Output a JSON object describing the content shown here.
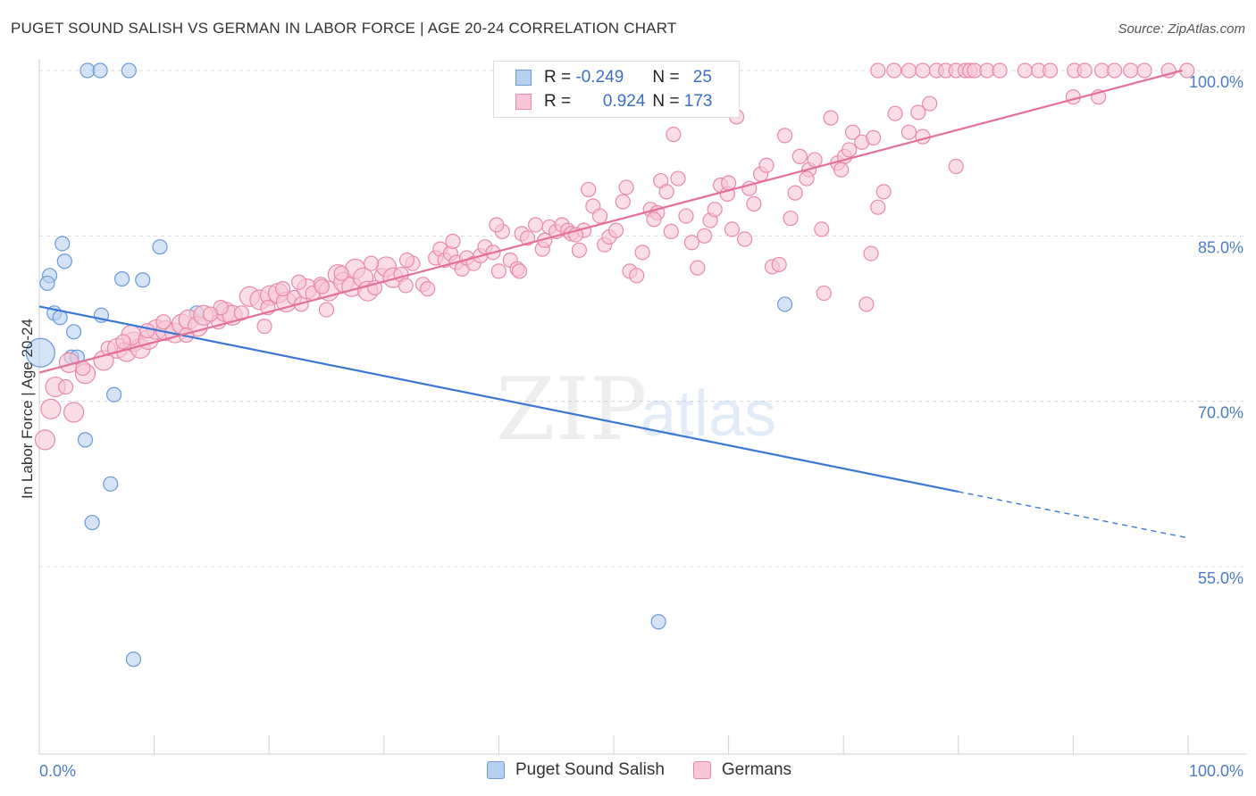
{
  "title": "PUGET SOUND SALISH VS GERMAN IN LABOR FORCE | AGE 20-24 CORRELATION CHART",
  "source": "Source: ZipAtlas.com",
  "watermark": {
    "zip": "ZIP",
    "atlas": "atlas"
  },
  "legend_top": {
    "r_label": "R =",
    "n_label": "N =",
    "rows": [
      {
        "r": "-0.249",
        "n": "25",
        "fill": "#b8d0f0",
        "stroke": "#6a9ad8"
      },
      {
        "r": "0.924",
        "n": "173",
        "fill": "#f8c6d6",
        "stroke": "#e88aa8"
      }
    ]
  },
  "bottom_legend": [
    {
      "label": "Puget Sound Salish",
      "fill": "#b8d0f0",
      "stroke": "#6a9ad8"
    },
    {
      "label": "Germans",
      "fill": "#f8c6d6",
      "stroke": "#e88aa8"
    }
  ],
  "chart_data": {
    "type": "scatter",
    "title": "PUGET SOUND SALISH VS GERMAN IN LABOR FORCE | AGE 20-24 CORRELATION CHART",
    "xlabel": "",
    "ylabel": "In Labor Force | Age 20-24",
    "xlim": [
      0,
      100
    ],
    "ylim": [
      39,
      101
    ],
    "x_tick_labels": [
      "0.0%",
      "100.0%"
    ],
    "y_ticks": [
      55,
      70,
      85,
      100
    ],
    "y_tick_labels": [
      "55.0%",
      "70.0%",
      "85.0%",
      "100.0%"
    ],
    "grid": true,
    "legend_position": "top-center",
    "colors": {
      "blue": "#3a78d4",
      "pink": "#e46f99"
    },
    "series": [
      {
        "name": "Puget Sound Salish",
        "color": "#6a9ad8",
        "fill": "#b8d0f0",
        "trend": {
          "x0": 0,
          "y0": 78.6,
          "x1": 80,
          "y1": 61.8,
          "dash_to_x": 100,
          "dash_to_y": 57.6
        },
        "points": [
          [
            4.2,
            100,
            1
          ],
          [
            5.3,
            100,
            1
          ],
          [
            7.8,
            100,
            1
          ],
          [
            2.0,
            84.3,
            1
          ],
          [
            10.5,
            84.0,
            1
          ],
          [
            2.2,
            82.7,
            1
          ],
          [
            0.9,
            81.4,
            1
          ],
          [
            0.7,
            80.7,
            1
          ],
          [
            7.2,
            81.1,
            1
          ],
          [
            9.0,
            81.0,
            1
          ],
          [
            1.3,
            78.0,
            1
          ],
          [
            1.8,
            77.6,
            1
          ],
          [
            5.4,
            77.8,
            1
          ],
          [
            13.7,
            78.0,
            1
          ],
          [
            3.0,
            76.3,
            1
          ],
          [
            0.1,
            74.4,
            3
          ],
          [
            2.8,
            74.0,
            1
          ],
          [
            3.3,
            74.0,
            1
          ],
          [
            6.5,
            70.6,
            1
          ],
          [
            4.0,
            66.5,
            1
          ],
          [
            6.2,
            62.5,
            1
          ],
          [
            4.6,
            59.0,
            1
          ],
          [
            64.9,
            78.8,
            1
          ],
          [
            53.9,
            50.0,
            1
          ],
          [
            8.2,
            46.6,
            1
          ]
        ]
      },
      {
        "name": "Germans",
        "color": "#e88aa8",
        "fill": "#f8c6d6",
        "trend": {
          "x0": 0,
          "y0": 72.6,
          "x1": 99.5,
          "y1": 100.0
        },
        "points": [
          [
            0.5,
            66.5,
            2
          ],
          [
            1.0,
            69.3,
            2
          ],
          [
            3.0,
            69.0,
            2
          ],
          [
            1.4,
            71.3,
            2
          ],
          [
            2.3,
            71.3,
            1
          ],
          [
            2.6,
            73.5,
            2
          ],
          [
            4.0,
            72.5,
            2
          ],
          [
            3.8,
            73.0,
            1
          ],
          [
            5.6,
            73.7,
            2
          ],
          [
            6.0,
            74.8,
            1
          ],
          [
            6.8,
            74.8,
            2
          ],
          [
            7.6,
            74.5,
            2
          ],
          [
            8.2,
            75.4,
            2
          ],
          [
            8.8,
            74.8,
            2
          ],
          [
            8.0,
            76.0,
            2
          ],
          [
            9.5,
            75.6,
            2
          ],
          [
            10.2,
            76.5,
            2
          ],
          [
            11.0,
            76.4,
            2
          ],
          [
            11.8,
            76.2,
            2
          ],
          [
            12.4,
            77.0,
            2
          ],
          [
            13.0,
            77.4,
            2
          ],
          [
            13.8,
            76.8,
            2
          ],
          [
            14.3,
            77.8,
            2
          ],
          [
            15.6,
            77.2,
            1
          ],
          [
            16.2,
            78.1,
            2
          ],
          [
            16.8,
            77.8,
            2
          ],
          [
            17.6,
            78.0,
            1
          ],
          [
            18.3,
            79.5,
            2
          ],
          [
            19.2,
            79.2,
            2
          ],
          [
            19.6,
            76.8,
            1
          ],
          [
            20.1,
            79.6,
            2
          ],
          [
            20.8,
            79.8,
            2
          ],
          [
            21.5,
            79.0,
            2
          ],
          [
            22.2,
            79.4,
            1
          ],
          [
            22.8,
            78.8,
            1
          ],
          [
            23.3,
            80.2,
            2
          ],
          [
            23.8,
            79.8,
            1
          ],
          [
            24.5,
            80.6,
            1
          ],
          [
            25.0,
            78.3,
            1
          ],
          [
            25.2,
            80.0,
            2
          ],
          [
            26.0,
            81.5,
            2
          ],
          [
            26.5,
            80.8,
            2
          ],
          [
            27.2,
            80.4,
            2
          ],
          [
            27.5,
            82.0,
            2
          ],
          [
            28.2,
            81.2,
            2
          ],
          [
            28.6,
            80.0,
            2
          ],
          [
            29.2,
            80.3,
            1
          ],
          [
            29.8,
            81.4,
            1
          ],
          [
            30.2,
            82.2,
            2
          ],
          [
            30.8,
            81.2,
            2
          ],
          [
            31.5,
            81.5,
            1
          ],
          [
            31.9,
            80.5,
            1
          ],
          [
            32.5,
            82.5,
            1
          ],
          [
            33.4,
            80.6,
            1
          ],
          [
            33.8,
            80.2,
            1
          ],
          [
            34.5,
            83.0,
            1
          ],
          [
            34.9,
            83.8,
            1
          ],
          [
            35.3,
            82.8,
            1
          ],
          [
            35.8,
            83.4,
            1
          ],
          [
            36.3,
            82.6,
            1
          ],
          [
            36.8,
            82.0,
            1
          ],
          [
            37.2,
            83.0,
            1
          ],
          [
            37.8,
            82.5,
            1
          ],
          [
            38.4,
            83.2,
            1
          ],
          [
            38.8,
            84.0,
            1
          ],
          [
            39.5,
            83.5,
            1
          ],
          [
            40.0,
            81.8,
            1
          ],
          [
            40.3,
            85.4,
            1
          ],
          [
            41.0,
            82.8,
            1
          ],
          [
            41.6,
            82.0,
            1
          ],
          [
            41.8,
            81.8,
            1
          ],
          [
            42.0,
            85.2,
            1
          ],
          [
            42.5,
            84.8,
            1
          ],
          [
            43.2,
            86.0,
            1
          ],
          [
            43.8,
            83.8,
            1
          ],
          [
            44.4,
            85.8,
            1
          ],
          [
            45.0,
            85.4,
            1
          ],
          [
            45.5,
            86.0,
            1
          ],
          [
            46.0,
            85.5,
            1
          ],
          [
            46.3,
            85.2,
            1
          ],
          [
            47.0,
            83.7,
            1
          ],
          [
            47.4,
            85.5,
            1
          ],
          [
            47.8,
            89.2,
            1
          ],
          [
            48.2,
            87.7,
            1
          ],
          [
            48.8,
            86.8,
            1
          ],
          [
            49.2,
            84.2,
            1
          ],
          [
            49.6,
            84.9,
            1
          ],
          [
            50.2,
            85.5,
            1
          ],
          [
            50.8,
            88.1,
            1
          ],
          [
            51.1,
            89.4,
            1
          ],
          [
            51.4,
            81.8,
            1
          ],
          [
            52.0,
            81.4,
            1
          ],
          [
            52.5,
            83.5,
            1
          ],
          [
            53.2,
            87.4,
            1
          ],
          [
            53.8,
            87.1,
            1
          ],
          [
            54.1,
            90.0,
            1
          ],
          [
            54.6,
            89.0,
            1
          ],
          [
            55.0,
            85.4,
            1
          ],
          [
            55.6,
            90.2,
            1
          ],
          [
            56.3,
            86.8,
            1
          ],
          [
            56.8,
            84.4,
            1
          ],
          [
            57.3,
            82.1,
            1
          ],
          [
            57.9,
            85.0,
            1
          ],
          [
            58.4,
            86.4,
            1
          ],
          [
            58.8,
            87.4,
            1
          ],
          [
            59.3,
            89.6,
            1
          ],
          [
            59.9,
            88.8,
            1
          ],
          [
            60.3,
            85.6,
            1
          ],
          [
            60.7,
            95.8,
            1
          ],
          [
            61.4,
            84.7,
            1
          ],
          [
            61.8,
            89.3,
            1
          ],
          [
            62.2,
            87.9,
            1
          ],
          [
            62.8,
            90.6,
            1
          ],
          [
            63.3,
            91.4,
            1
          ],
          [
            63.8,
            82.2,
            1
          ],
          [
            64.4,
            82.4,
            1
          ],
          [
            64.9,
            94.1,
            1
          ],
          [
            65.4,
            86.6,
            1
          ],
          [
            65.8,
            88.9,
            1
          ],
          [
            66.2,
            92.2,
            1
          ],
          [
            67.0,
            91.0,
            1
          ],
          [
            67.5,
            91.9,
            1
          ],
          [
            68.1,
            85.6,
            1
          ],
          [
            68.3,
            79.8,
            1
          ],
          [
            68.9,
            95.7,
            1
          ],
          [
            69.5,
            91.6,
            1
          ],
          [
            70.1,
            92.2,
            1
          ],
          [
            70.8,
            94.4,
            1
          ],
          [
            72.0,
            78.8,
            1
          ],
          [
            72.4,
            83.4,
            1
          ],
          [
            73.0,
            87.6,
            1
          ],
          [
            73.5,
            89.0,
            1
          ],
          [
            74.5,
            96.1,
            1
          ],
          [
            75.7,
            94.4,
            1
          ],
          [
            76.5,
            96.2,
            1
          ],
          [
            76.9,
            94.0,
            1
          ],
          [
            77.5,
            97.0,
            1
          ],
          [
            79.8,
            91.3,
            1
          ],
          [
            73.0,
            100,
            1
          ],
          [
            74.4,
            100,
            1
          ],
          [
            75.7,
            100,
            1
          ],
          [
            76.9,
            100,
            1
          ],
          [
            78.1,
            100,
            1
          ],
          [
            78.9,
            100,
            1
          ],
          [
            79.8,
            100,
            1
          ],
          [
            80.6,
            100,
            1
          ],
          [
            81.0,
            100,
            1
          ],
          [
            81.4,
            100,
            1
          ],
          [
            82.5,
            100,
            1
          ],
          [
            83.6,
            100,
            1
          ],
          [
            85.8,
            100,
            1
          ],
          [
            87.0,
            100,
            1
          ],
          [
            88.0,
            100,
            1
          ],
          [
            90.1,
            100,
            1
          ],
          [
            91.0,
            100,
            1
          ],
          [
            92.5,
            100,
            1
          ],
          [
            93.6,
            100,
            1
          ],
          [
            95.0,
            100,
            1
          ],
          [
            96.2,
            100,
            1
          ],
          [
            98.3,
            100,
            1
          ],
          [
            99.9,
            100,
            1
          ],
          [
            90.0,
            97.6,
            1
          ],
          [
            92.2,
            97.6,
            1
          ],
          [
            66.8,
            90.2,
            1
          ],
          [
            69.8,
            91.0,
            1
          ],
          [
            70.5,
            92.8,
            1
          ],
          [
            71.6,
            93.5,
            1
          ],
          [
            72.6,
            93.9,
            1
          ],
          [
            55.2,
            94.2,
            1
          ],
          [
            60.0,
            89.8,
            1
          ],
          [
            53.5,
            86.5,
            1
          ],
          [
            46.7,
            85.1,
            1
          ],
          [
            44.0,
            84.6,
            1
          ],
          [
            39.8,
            86.0,
            1
          ],
          [
            36.0,
            84.5,
            1
          ],
          [
            32.0,
            82.8,
            1
          ],
          [
            28.9,
            82.5,
            1
          ],
          [
            26.3,
            81.6,
            1
          ],
          [
            24.6,
            80.4,
            1
          ],
          [
            22.6,
            80.8,
            1
          ],
          [
            21.2,
            80.2,
            1
          ],
          [
            19.9,
            78.5,
            1
          ],
          [
            15.8,
            78.5,
            1
          ],
          [
            14.9,
            77.9,
            1
          ],
          [
            12.8,
            76.0,
            1
          ],
          [
            10.8,
            77.2,
            1
          ],
          [
            9.4,
            76.4,
            1
          ],
          [
            7.3,
            75.4,
            1
          ]
        ]
      }
    ]
  }
}
